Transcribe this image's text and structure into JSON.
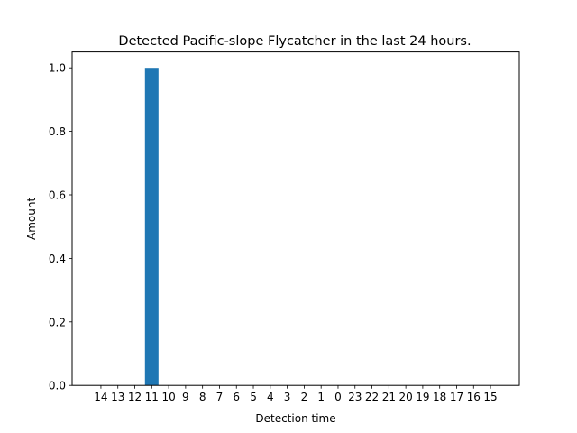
{
  "chart_data": {
    "type": "bar",
    "title": "Detected Pacific-slope Flycatcher in the last 24 hours.",
    "xlabel": "Detection time",
    "ylabel": "Amount",
    "categories": [
      "14",
      "13",
      "12",
      "11",
      "10",
      "9",
      "8",
      "7",
      "6",
      "5",
      "4",
      "3",
      "2",
      "1",
      "0",
      "23",
      "22",
      "21",
      "20",
      "19",
      "18",
      "17",
      "16",
      "15"
    ],
    "values": [
      0,
      0,
      0,
      1,
      0,
      0,
      0,
      0,
      0,
      0,
      0,
      0,
      0,
      0,
      0,
      0,
      0,
      0,
      0,
      0,
      0,
      0,
      0,
      0
    ],
    "ylim": [
      0,
      1.05
    ],
    "yticks": [
      0.0,
      0.2,
      0.4,
      0.6,
      0.8,
      1.0
    ],
    "ytick_labels": [
      "0.0",
      "0.2",
      "0.4",
      "0.6",
      "0.8",
      "1.0"
    ],
    "bar_color": "#1f77b4",
    "grid": false,
    "legend": "none"
  }
}
